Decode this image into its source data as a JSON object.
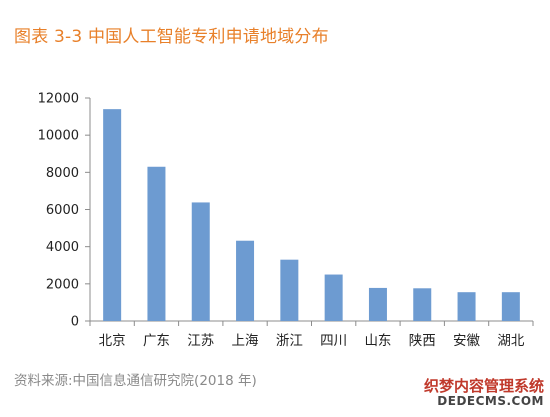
{
  "header": {
    "title": "图表 3-3 中国人工智能专利申请地域分布"
  },
  "chart_data": {
    "type": "bar",
    "title": "图表 3-3 中国人工智能专利申请地域分布",
    "xlabel": "",
    "ylabel": "",
    "categories": [
      "北京",
      "广东",
      "江苏",
      "上海",
      "浙江",
      "四川",
      "山东",
      "陕西",
      "安徽",
      "湖北"
    ],
    "values": [
      11400,
      8300,
      6380,
      4320,
      3300,
      2500,
      1780,
      1760,
      1550,
      1550
    ],
    "ylim": [
      0,
      12000
    ],
    "yticks": [
      0,
      2000,
      4000,
      6000,
      8000,
      10000,
      12000
    ],
    "grid": false,
    "legend": "none",
    "bar_color": "#6d9bd1"
  },
  "footer": {
    "source": "资料来源:中国信息通信研究院(2018 年)"
  },
  "watermark": {
    "line1": "织梦内容管理系统",
    "line2": "DEDECMS.COM"
  }
}
